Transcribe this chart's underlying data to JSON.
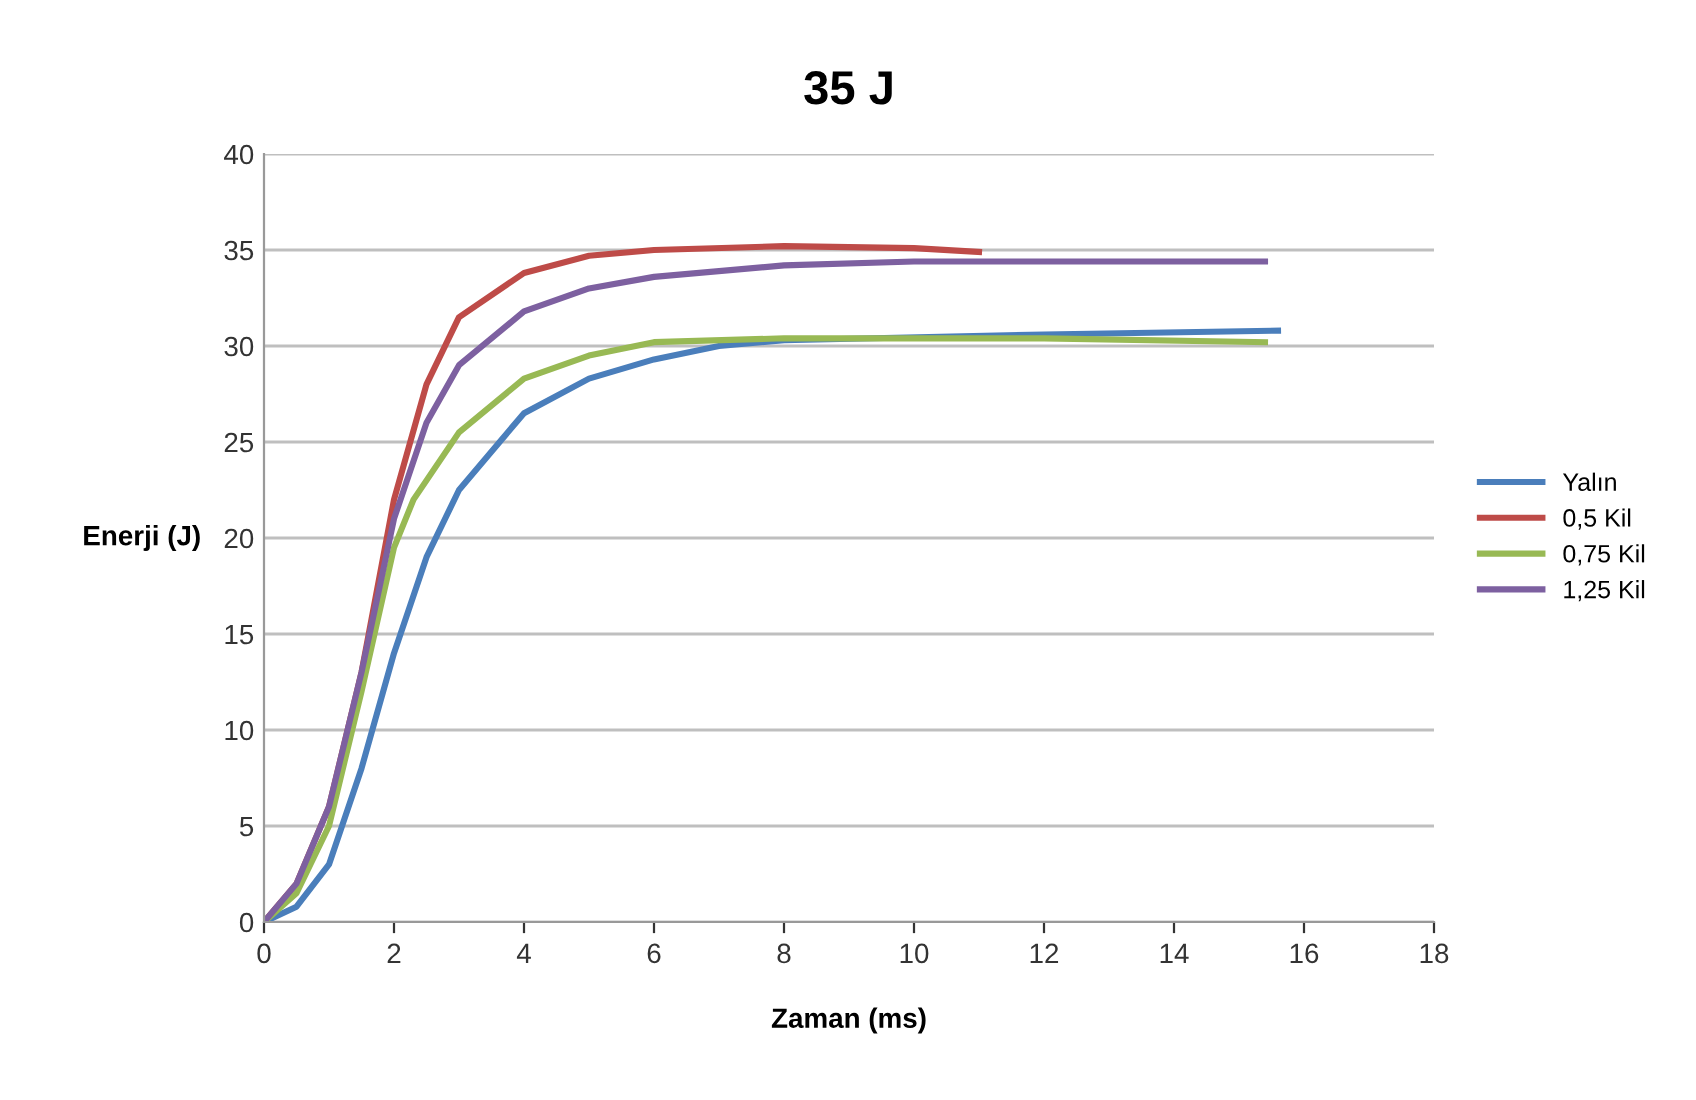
{
  "chart_data": {
    "type": "line",
    "title": "35 J",
    "xlabel": "Zaman (ms)",
    "ylabel": "Enerji (J)",
    "xlim": [
      0,
      18
    ],
    "xticks": [
      0,
      2,
      4,
      6,
      8,
      10,
      12,
      14,
      16,
      18
    ],
    "ylim": [
      0,
      40
    ],
    "yticks": [
      0,
      5,
      10,
      15,
      20,
      25,
      30,
      35,
      40
    ],
    "grid": "y",
    "legend": "right",
    "marker": "none",
    "line_style": "solid",
    "series": [
      {
        "name": "Yalın",
        "color": "#4a7ebb",
        "x": [
          0,
          0.5,
          1,
          1.5,
          2,
          2.5,
          3,
          4,
          5,
          6,
          7,
          8,
          12,
          15.6
        ],
        "values": [
          0,
          0.8,
          3,
          8,
          14,
          19,
          22.5,
          26.5,
          28.3,
          29.3,
          30,
          30.3,
          30.6,
          30.8
        ]
      },
      {
        "name": "0,5 Kil",
        "color": "#be4b48",
        "x": [
          0,
          0.5,
          1,
          1.5,
          2,
          2.5,
          3,
          4,
          5,
          6,
          8,
          10,
          11
        ],
        "values": [
          0,
          2,
          6,
          13,
          22,
          28,
          31.5,
          33.8,
          34.7,
          35,
          35.2,
          35.1,
          34.9
        ]
      },
      {
        "name": "0,75 Kil",
        "color": "#98b954",
        "x": [
          0,
          0.5,
          1,
          1.5,
          2,
          2.3,
          3,
          4,
          5,
          6,
          8,
          12,
          15.4
        ],
        "values": [
          0,
          1.5,
          5,
          12,
          19.5,
          22,
          25.5,
          28.3,
          29.5,
          30.2,
          30.4,
          30.4,
          30.2
        ]
      },
      {
        "name": "1,25 Kil",
        "color": "#7d60a0",
        "x": [
          0,
          0.5,
          1,
          1.5,
          2,
          2.5,
          3,
          4,
          5,
          6,
          8,
          10,
          15.4
        ],
        "values": [
          0,
          2,
          6,
          13,
          21,
          26,
          29,
          31.8,
          33,
          33.6,
          34.2,
          34.4,
          34.4
        ]
      }
    ]
  }
}
